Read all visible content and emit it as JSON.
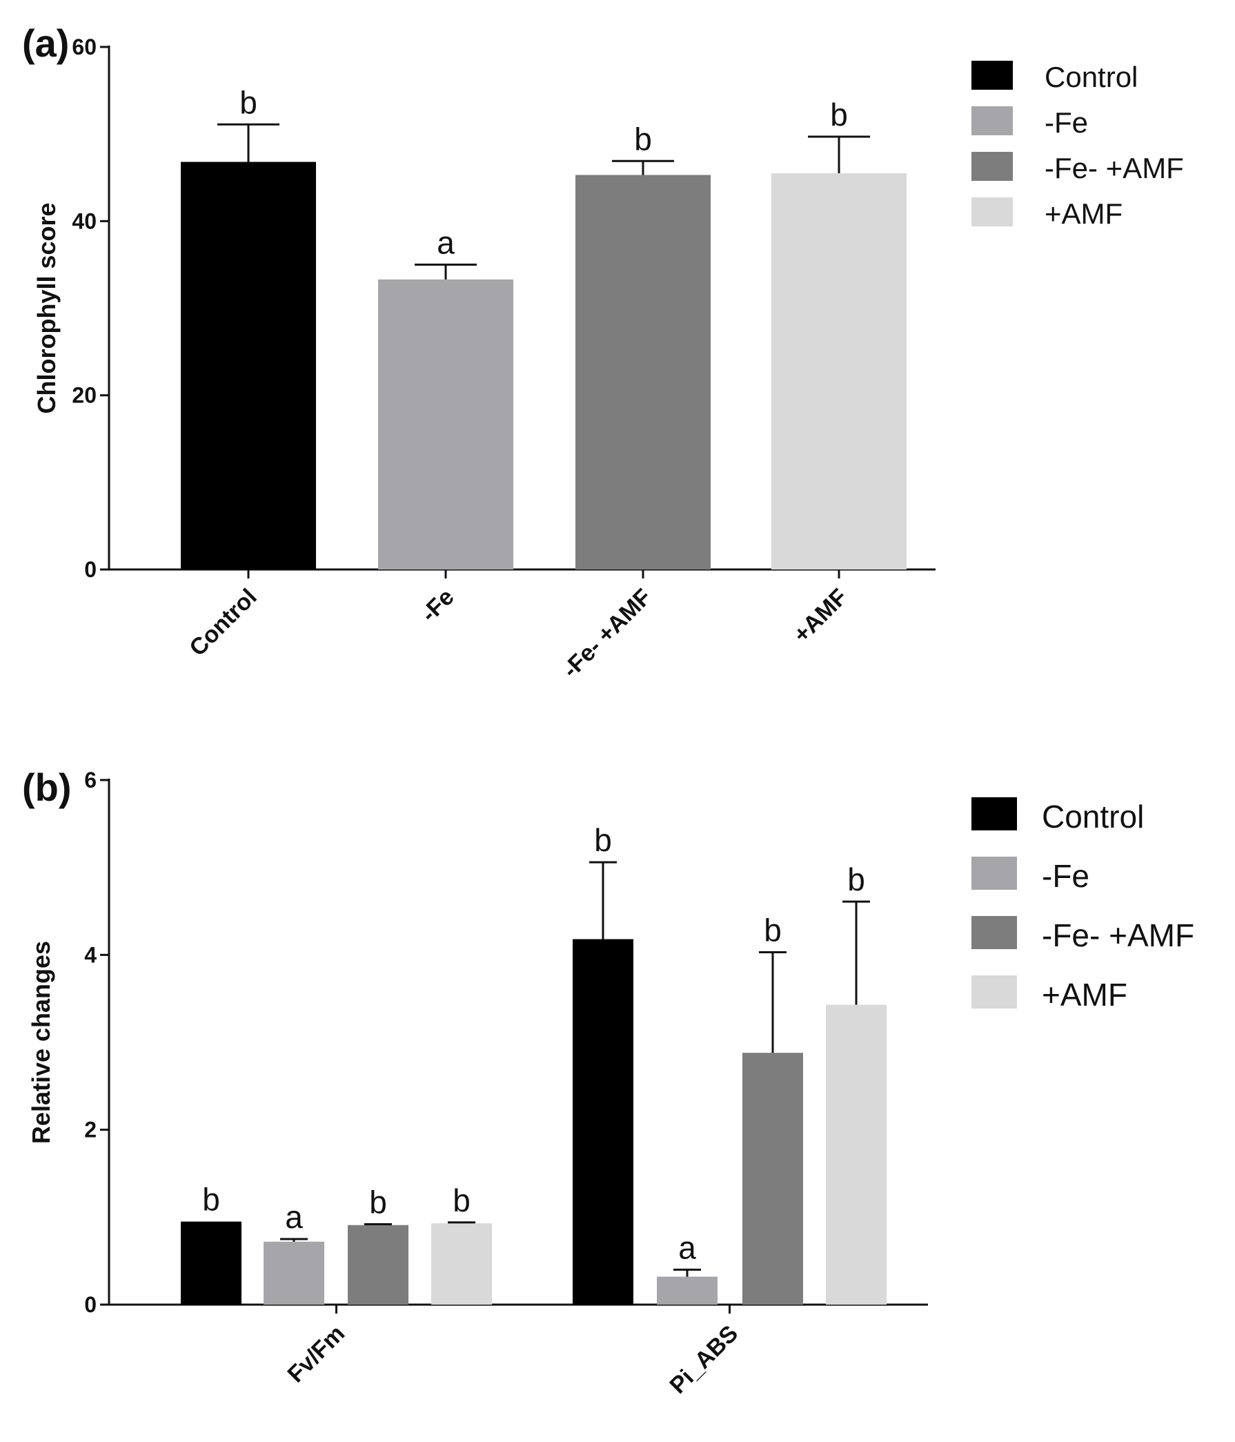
{
  "chart_data": [
    {
      "type": "bar",
      "panel_label": "(a)",
      "title": "",
      "xlabel": "",
      "ylabel": "Chlorophyll score",
      "ylim": [
        0,
        60
      ],
      "yticks": [
        0,
        20,
        40,
        60
      ],
      "categories": [
        "Control",
        "-Fe",
        "-Fe- +AMF",
        "+AMF"
      ],
      "values": [
        46.8,
        33.3,
        45.3,
        45.5
      ],
      "errors": [
        4.3,
        1.7,
        1.6,
        4.2
      ],
      "significance": [
        "b",
        "a",
        "b",
        "b"
      ],
      "colors": [
        "#000000",
        "#a6a6aa",
        "#7d7d7d",
        "#d9d9d9"
      ],
      "legend": {
        "position": "top-right",
        "entries": [
          "Control",
          "-Fe",
          "-Fe- +AMF",
          "+AMF"
        ]
      }
    },
    {
      "type": "bar",
      "panel_label": "(b)",
      "title": "",
      "xlabel": "",
      "ylabel": "Relative changes",
      "ylim": [
        0,
        6
      ],
      "yticks": [
        0,
        2,
        4,
        6
      ],
      "categories": [
        "Fv/Fm",
        "Pi_ABS"
      ],
      "series": [
        {
          "name": "Control",
          "color": "#000000",
          "values": [
            0.95,
            4.18
          ],
          "errors": [
            0.0,
            0.88
          ],
          "significance": [
            "b",
            "b"
          ]
        },
        {
          "name": "-Fe",
          "color": "#a6a6aa",
          "values": [
            0.72,
            0.32
          ],
          "errors": [
            0.03,
            0.08
          ],
          "significance": [
            "a",
            "a"
          ]
        },
        {
          "name": "-Fe- +AMF",
          "color": "#7d7d7d",
          "values": [
            0.91,
            2.88
          ],
          "errors": [
            0.01,
            1.15
          ],
          "significance": [
            "b",
            "b"
          ]
        },
        {
          "name": "+AMF",
          "color": "#d9d9d9",
          "values": [
            0.93,
            3.43
          ],
          "errors": [
            0.01,
            1.18
          ],
          "significance": [
            "b",
            "b"
          ]
        }
      ],
      "legend": {
        "position": "top-right",
        "entries": [
          "Control",
          "-Fe",
          "-Fe- +AMF",
          "+AMF"
        ]
      }
    }
  ]
}
